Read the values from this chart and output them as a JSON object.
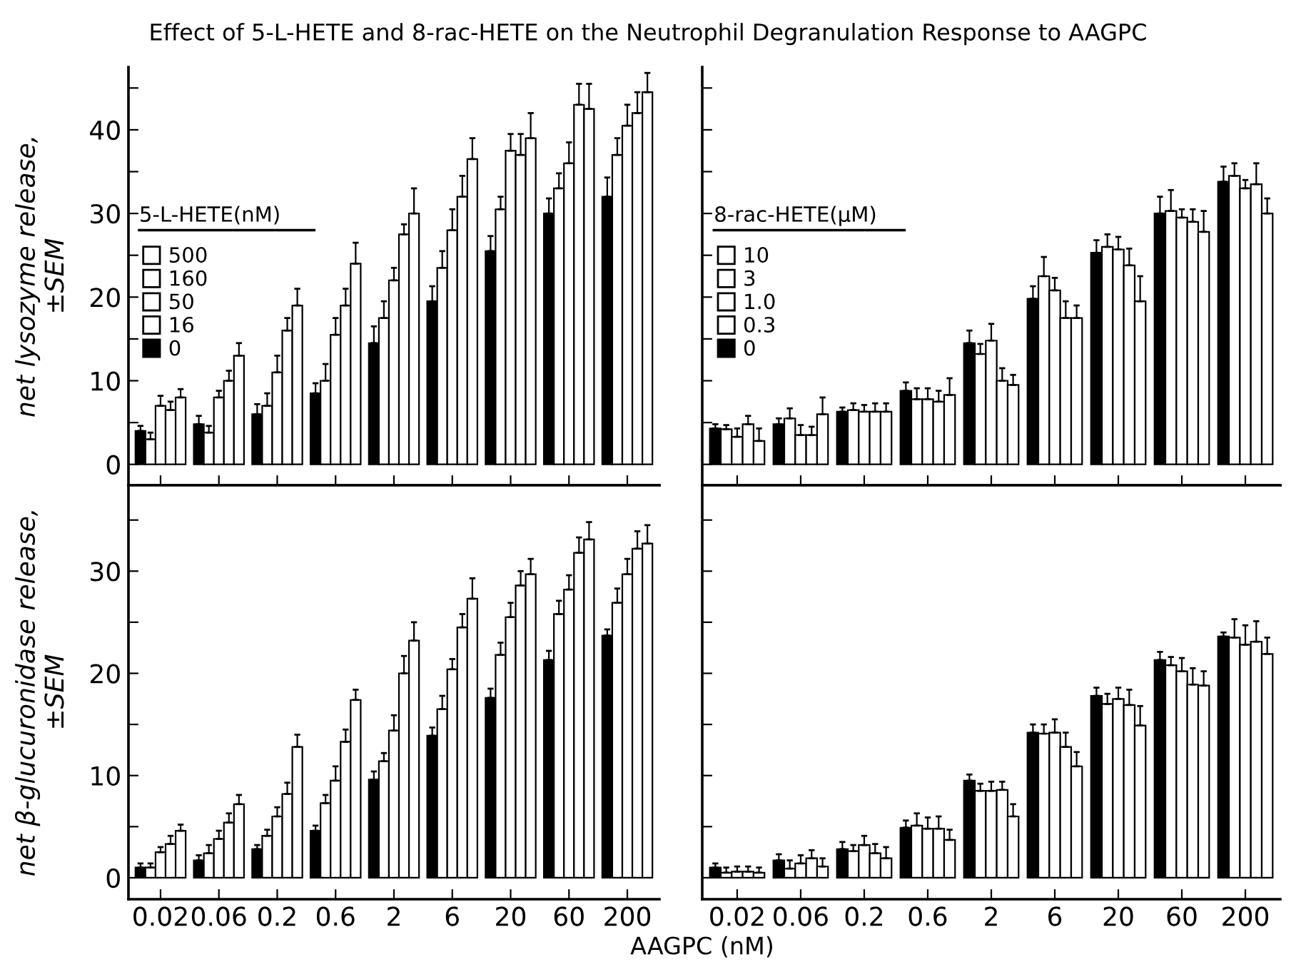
{
  "chart_data": [
    {
      "type": "bar",
      "title": "Effect of 5-L-HETE and 8-rac-HETE on the Neutrophil Degranulation Response to AAGPC",
      "ylabel": "net lysozyme release,\n±SEM",
      "legend_title": "5-L-HETE(nM)",
      "legend": "left",
      "tick_labels": "y",
      "categories": [
        "0.02",
        "0.06",
        "0.2",
        "0.6",
        "2",
        "6",
        "20",
        "60",
        "200"
      ],
      "ylim": [
        -2.5,
        47.5
      ],
      "yticks": [
        0,
        {
          "value": 5,
          "label": null
        },
        10,
        {
          "value": 15,
          "label": null
        },
        20,
        {
          "value": 25,
          "label": null
        },
        30,
        {
          "value": 35,
          "label": null
        },
        40,
        {
          "value": 45,
          "label": null
        }
      ],
      "series": [
        {
          "name": "0",
          "color": "#000000",
          "values": [
            4,
            4.8,
            6,
            8.5,
            14.5,
            19.5,
            25.5,
            30,
            32
          ],
          "errors": [
            [
              4,
              4.6
            ],
            [
              4.8,
              5.8
            ],
            [
              6,
              7.2
            ],
            [
              8.5,
              9.7
            ],
            [
              14.5,
              16.5
            ],
            [
              19.5,
              21.3
            ],
            [
              25.5,
              27.3
            ],
            [
              30,
              31.8
            ],
            [
              32,
              34.3
            ]
          ]
        },
        {
          "name": "16",
          "color": "#ffffff",
          "values": [
            3,
            3.8,
            7,
            10,
            17.5,
            23.5,
            30.5,
            33,
            37
          ],
          "errors": [
            [
              3,
              3.8
            ],
            [
              3.8,
              4.6
            ],
            [
              7,
              8.5
            ],
            [
              10,
              12
            ],
            [
              17.5,
              19.5
            ],
            [
              23.5,
              25.5
            ],
            [
              30.5,
              32
            ],
            [
              33,
              34.8
            ],
            [
              37,
              39
            ]
          ]
        },
        {
          "name": "50",
          "color": "#ffffff",
          "values": [
            7,
            8,
            11,
            15.5,
            22,
            28,
            37.5,
            36,
            40.5
          ],
          "errors": [
            [
              7,
              8.2
            ],
            [
              8,
              8.8
            ],
            [
              11,
              13
            ],
            [
              15.5,
              17.5
            ],
            [
              22,
              23.5
            ],
            [
              28,
              30.5
            ],
            [
              37.5,
              39.5
            ],
            [
              36,
              38.5
            ],
            [
              40.5,
              43
            ]
          ]
        },
        {
          "name": "160",
          "color": "#ffffff",
          "values": [
            6.5,
            10,
            16,
            19,
            27.5,
            32,
            37,
            43,
            42
          ],
          "errors": [
            [
              6.5,
              7.5
            ],
            [
              10,
              11.2
            ],
            [
              16,
              17.5
            ],
            [
              19,
              21
            ],
            [
              27.5,
              28.7
            ],
            [
              32,
              34.5
            ],
            [
              37,
              39.5
            ],
            [
              43,
              45.5
            ],
            [
              42,
              44.5
            ]
          ]
        },
        {
          "name": "500",
          "color": "#ffffff",
          "values": [
            8,
            13,
            19,
            24,
            30,
            36.5,
            39,
            42.5,
            44.5
          ],
          "errors": [
            [
              8,
              9
            ],
            [
              13,
              14.5
            ],
            [
              19,
              21
            ],
            [
              24,
              26.5
            ],
            [
              30,
              33
            ],
            [
              36.5,
              39
            ],
            [
              39,
              42
            ],
            [
              42.5,
              45.5
            ],
            [
              44.5,
              46.8
            ]
          ]
        }
      ]
    },
    {
      "type": "bar",
      "legend_title": "8-rac-HETE(μM)",
      "legend": "left",
      "tick_labels": false,
      "categories": [
        "0.02",
        "0.06",
        "0.2",
        "0.6",
        "2",
        "6",
        "20",
        "60",
        "200"
      ],
      "ylim": [
        -2.5,
        47.5
      ],
      "yticks": [
        0,
        {
          "value": 5,
          "label": null
        },
        10,
        {
          "value": 15,
          "label": null
        },
        20,
        {
          "value": 25,
          "label": null
        },
        30,
        {
          "value": 35,
          "label": null
        },
        40,
        {
          "value": 45,
          "label": null
        }
      ],
      "series": [
        {
          "name": "0",
          "color": "#000000",
          "values": [
            4.3,
            4.8,
            6.3,
            8.8,
            14.5,
            19.8,
            25.3,
            30,
            33.8
          ],
          "errors": [
            [
              4.3,
              4.8
            ],
            [
              4.8,
              5.5
            ],
            [
              6.3,
              6.8
            ],
            [
              8.8,
              9.8
            ],
            [
              14.5,
              16
            ],
            [
              19.8,
              21.3
            ],
            [
              25.3,
              26.8
            ],
            [
              30,
              32
            ],
            [
              33.8,
              35.6
            ]
          ]
        },
        {
          "name": "0.3",
          "color": "#ffffff",
          "values": [
            4.2,
            5.5,
            6.5,
            7.8,
            13.2,
            22.5,
            26,
            30.3,
            34.5
          ],
          "errors": [
            [
              4.2,
              4.7
            ],
            [
              5.5,
              6.7
            ],
            [
              6.5,
              7.3
            ],
            [
              7.8,
              9.1
            ],
            [
              13.2,
              14.4
            ],
            [
              22.5,
              24.8
            ],
            [
              26,
              27.5
            ],
            [
              30.3,
              32.8
            ],
            [
              34.5,
              36
            ]
          ]
        },
        {
          "name": "1.0",
          "color": "#ffffff",
          "values": [
            3.3,
            3.5,
            6.3,
            7.8,
            14.8,
            20.8,
            25.7,
            29.5,
            33
          ],
          "errors": [
            [
              3.3,
              4.3
            ],
            [
              3.5,
              4.7
            ],
            [
              6.3,
              7.1
            ],
            [
              7.8,
              9.1
            ],
            [
              14.8,
              16.8
            ],
            [
              20.8,
              22.3
            ],
            [
              25.7,
              27.2
            ],
            [
              29.5,
              30.5
            ],
            [
              33,
              34
            ]
          ]
        },
        {
          "name": "3",
          "color": "#ffffff",
          "values": [
            4.8,
            3.5,
            6.3,
            7.5,
            10,
            17.5,
            23.8,
            29,
            33.5
          ],
          "errors": [
            [
              4.8,
              5.8
            ],
            [
              3.5,
              4.5
            ],
            [
              6.3,
              7.3
            ],
            [
              7.5,
              8.8
            ],
            [
              10,
              11.5
            ],
            [
              17.5,
              19.5
            ],
            [
              23.8,
              25.8
            ],
            [
              29,
              30.5
            ],
            [
              33.5,
              36
            ]
          ]
        },
        {
          "name": "10",
          "color": "#ffffff",
          "values": [
            2.8,
            6,
            6.3,
            8.3,
            9.5,
            17.5,
            19.5,
            27.8,
            30
          ],
          "errors": [
            [
              2.8,
              4.3
            ],
            [
              6,
              8
            ],
            [
              6.3,
              7.3
            ],
            [
              8.3,
              10.3
            ],
            [
              9.5,
              10.7
            ],
            [
              17.5,
              19
            ],
            [
              19.5,
              22.5
            ],
            [
              27.8,
              30.3
            ],
            [
              30,
              31.8
            ]
          ]
        }
      ]
    },
    {
      "type": "bar",
      "ylabel": "net β-glucuronidase release,\n±SEM",
      "xlabel": "AAGPC (nM)",
      "categories": [
        "0.02",
        "0.06",
        "0.2",
        "0.6",
        "2",
        "6",
        "20",
        "60",
        "200"
      ],
      "ylim": [
        -2.1,
        38.4
      ],
      "yticks": [
        0,
        {
          "value": 5,
          "label": null
        },
        10,
        {
          "value": 15,
          "label": null
        },
        20,
        {
          "value": 25,
          "label": null
        },
        30,
        {
          "value": 35,
          "label": null
        }
      ],
      "series": [
        {
          "color": "#000000",
          "values": [
            1,
            1.7,
            2.8,
            4.6,
            9.6,
            13.9,
            17.6,
            21.3,
            23.7
          ],
          "errors": [
            [
              1,
              1.4
            ],
            [
              1.7,
              2.2
            ],
            [
              2.8,
              3.2
            ],
            [
              4.6,
              5.1
            ],
            [
              9.6,
              10.4
            ],
            [
              13.9,
              14.7
            ],
            [
              17.6,
              18.5
            ],
            [
              21.3,
              22.2
            ],
            [
              23.7,
              24.3
            ]
          ]
        },
        {
          "color": "#ffffff",
          "values": [
            1,
            2.4,
            4.1,
            7.3,
            11.4,
            16.5,
            21.8,
            25.8,
            26.9
          ],
          "errors": [
            [
              1,
              1.4
            ],
            [
              2.4,
              3.2
            ],
            [
              4.1,
              4.7
            ],
            [
              7.3,
              8.1
            ],
            [
              11.4,
              12.2
            ],
            [
              16.5,
              17.8
            ],
            [
              21.8,
              23
            ],
            [
              25.8,
              27.1
            ],
            [
              26.9,
              28.3
            ]
          ]
        },
        {
          "color": "#ffffff",
          "values": [
            2.5,
            3.8,
            6,
            9.5,
            14.4,
            20.4,
            25.5,
            28.2,
            29.7
          ],
          "errors": [
            [
              2.5,
              3
            ],
            [
              3.8,
              4.6
            ],
            [
              6,
              6.9
            ],
            [
              9.5,
              10.9
            ],
            [
              14.4,
              15.9
            ],
            [
              20.4,
              21.4
            ],
            [
              25.5,
              26.9
            ],
            [
              28.2,
              29.6
            ],
            [
              29.7,
              31.2
            ]
          ]
        },
        {
          "color": "#ffffff",
          "values": [
            3.3,
            5.4,
            8.2,
            13.3,
            20,
            24.5,
            28.6,
            31.8,
            32.2
          ],
          "errors": [
            [
              3.3,
              4.1
            ],
            [
              5.4,
              6.3
            ],
            [
              8.2,
              9.3
            ],
            [
              13.3,
              14.5
            ],
            [
              20,
              21.7
            ],
            [
              24.5,
              25.8
            ],
            [
              28.6,
              30
            ],
            [
              31.8,
              33.3
            ],
            [
              32.2,
              33.9
            ]
          ]
        },
        {
          "color": "#ffffff",
          "values": [
            4.6,
            7.2,
            12.8,
            17.4,
            23.2,
            27.3,
            29.7,
            33.1,
            32.7
          ],
          "errors": [
            [
              4.6,
              5.2
            ],
            [
              7.2,
              8.1
            ],
            [
              12.8,
              14
            ],
            [
              17.4,
              18.4
            ],
            [
              23.2,
              25
            ],
            [
              27.3,
              29.3
            ],
            [
              29.7,
              31.2
            ],
            [
              33.1,
              34.8
            ],
            [
              32.7,
              34.5
            ]
          ]
        }
      ]
    },
    {
      "type": "bar",
      "tick_labels": "x",
      "categories": [
        "0.02",
        "0.06",
        "0.2",
        "0.6",
        "2",
        "6",
        "20",
        "60",
        "200"
      ],
      "ylim": [
        -2.1,
        38.4
      ],
      "yticks": [
        0,
        {
          "value": 5,
          "label": null
        },
        10,
        {
          "value": 15,
          "label": null
        },
        20,
        {
          "value": 25,
          "label": null
        },
        30,
        {
          "value": 35,
          "label": null
        }
      ],
      "series": [
        {
          "color": "#000000",
          "values": [
            1,
            1.7,
            2.8,
            4.9,
            9.5,
            14.2,
            17.8,
            21.3,
            23.6
          ],
          "errors": [
            [
              1,
              1.4
            ],
            [
              1.7,
              2.3
            ],
            [
              2.8,
              3.5
            ],
            [
              4.9,
              5.6
            ],
            [
              9.5,
              10.1
            ],
            [
              14.2,
              15
            ],
            [
              17.8,
              18.6
            ],
            [
              21.3,
              22.1
            ],
            [
              23.6,
              24
            ]
          ]
        },
        {
          "color": "#ffffff",
          "values": [
            0.5,
            0.9,
            2.6,
            5.1,
            8.5,
            14.1,
            17,
            20.8,
            23.5
          ],
          "errors": [
            [
              0.5,
              1
            ],
            [
              0.9,
              1.7
            ],
            [
              2.6,
              3.2
            ],
            [
              5.1,
              6.3
            ],
            [
              8.5,
              9.2
            ],
            [
              14.1,
              15
            ],
            [
              17,
              18
            ],
            [
              20.8,
              21.6
            ],
            [
              23.5,
              25.3
            ]
          ]
        },
        {
          "color": "#ffffff",
          "values": [
            0.6,
            1.4,
            3.2,
            4.8,
            8.5,
            14.2,
            17.5,
            20.2,
            22.8
          ],
          "errors": [
            [
              0.6,
              1.1
            ],
            [
              1.4,
              2.2
            ],
            [
              3.2,
              4.1
            ],
            [
              4.8,
              5.9
            ],
            [
              8.5,
              9.4
            ],
            [
              14.2,
              15.5
            ],
            [
              17.5,
              18.6
            ],
            [
              20.2,
              21.5
            ],
            [
              22.8,
              24.7
            ]
          ]
        },
        {
          "color": "#ffffff",
          "values": [
            0.6,
            1.9,
            2.4,
            4.8,
            8.6,
            12.8,
            16.9,
            18.9,
            23.1
          ],
          "errors": [
            [
              0.6,
              1.1
            ],
            [
              1.9,
              2.7
            ],
            [
              2.4,
              3.3
            ],
            [
              4.8,
              6
            ],
            [
              8.6,
              9.4
            ],
            [
              12.8,
              14.2
            ],
            [
              16.9,
              18.4
            ],
            [
              18.9,
              20.5
            ],
            [
              23.1,
              25.1
            ]
          ]
        },
        {
          "color": "#ffffff",
          "values": [
            0.5,
            1.1,
            1.9,
            3.7,
            6,
            10.9,
            14.9,
            18.8,
            21.9
          ],
          "errors": [
            [
              0.5,
              1
            ],
            [
              1.1,
              1.9
            ],
            [
              1.9,
              3
            ],
            [
              3.7,
              4.7
            ],
            [
              6,
              7.2
            ],
            [
              10.9,
              12.3
            ],
            [
              14.9,
              16.8
            ],
            [
              18.8,
              20.2
            ],
            [
              21.9,
              23.5
            ]
          ]
        }
      ]
    }
  ]
}
